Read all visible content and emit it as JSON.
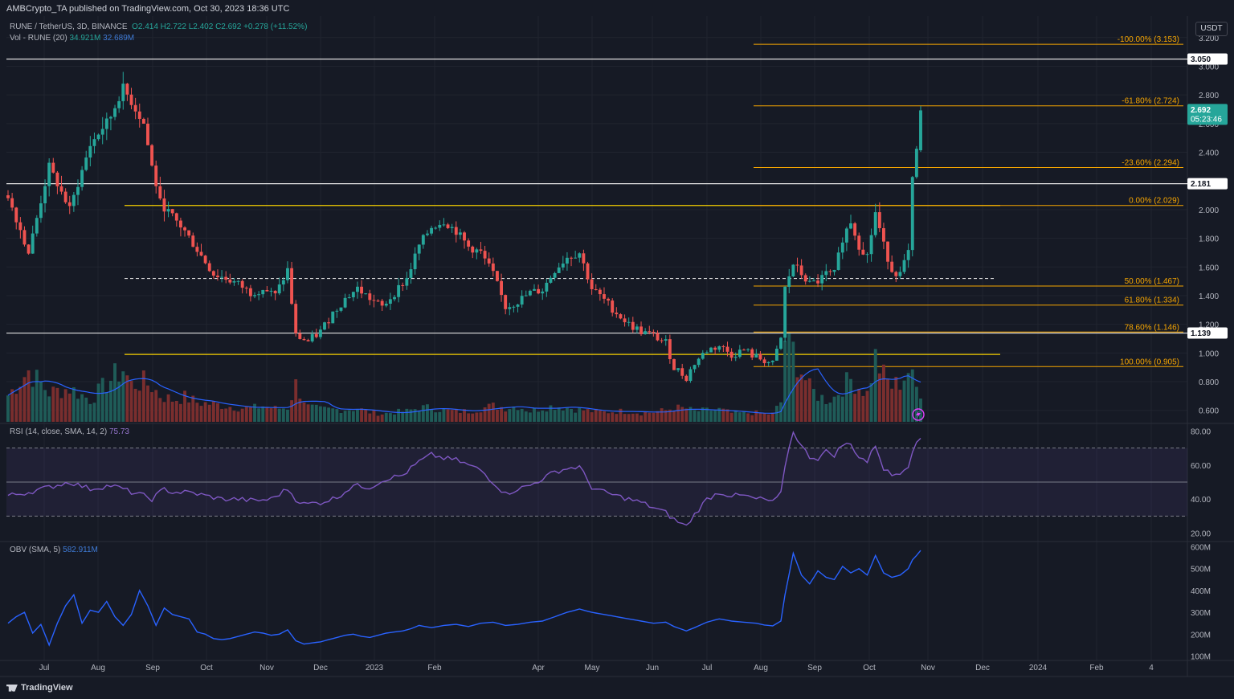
{
  "header": {
    "publisher": "AMBCrypto_TA published on TradingView.com, Oct 30, 2023 18:36 UTC"
  },
  "legend": {
    "symbol": "RUNE / TetherUS, 3D, BINANCE",
    "ohlc": "O2.414 H2.722 L2.402 C2.692 +0.278 (+11.52%)",
    "vol_label": "Vol - RUNE (20)",
    "vol_value": "34.921M",
    "vol_ma": "32.689M",
    "rsi_label": "RSI (14, close, SMA, 14, 2)",
    "rsi_value": "75.73",
    "obv_label": "OBV (SMA, 5)",
    "obv_value": "582.911M"
  },
  "currency": "USDT",
  "footer": {
    "brand": "TradingView"
  },
  "chart_data": {
    "type": "candlestick",
    "colors": {
      "up": "#26a69a",
      "down": "#ef5350",
      "bg": "#161a25",
      "grid": "#232632",
      "fib": "#f7a600",
      "level": "#e0e0e0",
      "vol_ma": "#2962ff",
      "rsi": "#7e57c2",
      "obv": "#2962ff"
    },
    "price_axis": {
      "ticks": [
        "3.200",
        "3.000",
        "2.800",
        "2.600",
        "2.400",
        "2.200",
        "2.000",
        "1.800",
        "1.600",
        "1.400",
        "1.200",
        "1.000",
        "0.800",
        "0.600"
      ],
      "scale": "linear",
      "min": 0.52,
      "max": 3.35
    },
    "time_axis": [
      "Jul",
      "Aug",
      "Sep",
      "Oct",
      "Nov",
      "Dec",
      "2023",
      "Feb",
      "Apr",
      "May",
      "Jun",
      "Jul",
      "Aug",
      "Sep",
      "Oct",
      "Nov",
      "Dec",
      "2024",
      "Feb",
      "4"
    ],
    "price_labels": [
      {
        "value": 3.05,
        "text": "3.050",
        "style": "white"
      },
      {
        "value": 2.181,
        "text": "2.181",
        "style": "white"
      },
      {
        "value": 1.139,
        "text": "1.139",
        "style": "white"
      },
      {
        "value": 2.692,
        "text": "2.692",
        "sub": "05:23:46",
        "style": "green"
      }
    ],
    "fib_levels": [
      {
        "value": 3.153,
        "label": "-100.00% (3.153)"
      },
      {
        "value": 2.724,
        "label": "-61.80% (2.724)"
      },
      {
        "value": 2.294,
        "label": "-23.60% (2.294)"
      },
      {
        "value": 2.029,
        "label": "0.00% (2.029)"
      },
      {
        "value": 1.467,
        "label": "50.00% (1.467)"
      },
      {
        "value": 1.334,
        "label": "61.80% (1.334)"
      },
      {
        "value": 1.146,
        "label": "78.60% (1.146)"
      },
      {
        "value": 0.905,
        "label": "100.00% (0.905)"
      }
    ],
    "horizontal_levels": [
      {
        "value": 3.05,
        "color": "#e0e0e0",
        "style": "solid",
        "from": "start"
      },
      {
        "value": 2.181,
        "color": "#e0e0e0",
        "style": "solid",
        "from": "start"
      },
      {
        "value": 1.139,
        "color": "#e0e0e0",
        "style": "solid",
        "from": "start"
      },
      {
        "value": 2.029,
        "color": "#f7d000",
        "style": "solid",
        "from": "Aug 2022"
      },
      {
        "value": 0.99,
        "color": "#f7d000",
        "style": "solid",
        "from": "Aug 2022"
      },
      {
        "value": 1.52,
        "color": "#e0e0e0",
        "style": "dashed",
        "from": "Aug 2022"
      }
    ],
    "price_anchors": [
      [
        0,
        2.1
      ],
      [
        5,
        1.7
      ],
      [
        10,
        2.3
      ],
      [
        15,
        2.0
      ],
      [
        20,
        2.45
      ],
      [
        25,
        2.65
      ],
      [
        28,
        2.85
      ],
      [
        30,
        2.75
      ],
      [
        33,
        2.6
      ],
      [
        35,
        2.3
      ],
      [
        37,
        2.05
      ],
      [
        40,
        1.95
      ],
      [
        43,
        1.85
      ],
      [
        46,
        1.72
      ],
      [
        50,
        1.55
      ],
      [
        53,
        1.52
      ],
      [
        56,
        1.48
      ],
      [
        59,
        1.42
      ],
      [
        62,
        1.45
      ],
      [
        65,
        1.4
      ],
      [
        68,
        1.58
      ],
      [
        70,
        1.12
      ],
      [
        73,
        1.08
      ],
      [
        76,
        1.15
      ],
      [
        79,
        1.28
      ],
      [
        82,
        1.38
      ],
      [
        85,
        1.45
      ],
      [
        88,
        1.38
      ],
      [
        91,
        1.32
      ],
      [
        94,
        1.42
      ],
      [
        97,
        1.52
      ],
      [
        100,
        1.75
      ],
      [
        103,
        1.88
      ],
      [
        106,
        1.92
      ],
      [
        109,
        1.85
      ],
      [
        112,
        1.74
      ],
      [
        115,
        1.7
      ],
      [
        118,
        1.55
      ],
      [
        121,
        1.32
      ],
      [
        124,
        1.36
      ],
      [
        127,
        1.42
      ],
      [
        130,
        1.44
      ],
      [
        133,
        1.58
      ],
      [
        136,
        1.67
      ],
      [
        139,
        1.7
      ],
      [
        142,
        1.45
      ],
      [
        145,
        1.37
      ],
      [
        148,
        1.28
      ],
      [
        151,
        1.2
      ],
      [
        154,
        1.15
      ],
      [
        157,
        1.12
      ],
      [
        160,
        1.07
      ],
      [
        162,
        0.9
      ],
      [
        165,
        0.83
      ],
      [
        167,
        0.93
      ],
      [
        170,
        1.02
      ],
      [
        173,
        1.05
      ],
      [
        176,
        0.99
      ],
      [
        179,
        1.02
      ],
      [
        182,
        0.97
      ],
      [
        184,
        0.95
      ],
      [
        186,
        0.92
      ],
      [
        188,
        1.1
      ],
      [
        189,
        1.45
      ],
      [
        191,
        1.62
      ],
      [
        193,
        1.55
      ],
      [
        195,
        1.48
      ],
      [
        197,
        1.5
      ],
      [
        199,
        1.55
      ],
      [
        201,
        1.55
      ],
      [
        203,
        1.8
      ],
      [
        205,
        1.92
      ],
      [
        207,
        1.75
      ],
      [
        209,
        1.68
      ],
      [
        211,
        1.98
      ],
      [
        213,
        1.75
      ],
      [
        215,
        1.58
      ],
      [
        217,
        1.55
      ],
      [
        219,
        1.7
      ],
      [
        220,
        2.2
      ],
      [
        221,
        2.41
      ],
      [
        222,
        2.692
      ]
    ],
    "volume_anchors": [
      [
        0,
        30
      ],
      [
        5,
        58
      ],
      [
        10,
        33
      ],
      [
        15,
        38
      ],
      [
        20,
        25
      ],
      [
        25,
        48
      ],
      [
        28,
        60
      ],
      [
        30,
        42
      ],
      [
        33,
        45
      ],
      [
        35,
        40
      ],
      [
        37,
        30
      ],
      [
        40,
        25
      ],
      [
        43,
        28
      ],
      [
        46,
        22
      ],
      [
        50,
        20
      ],
      [
        53,
        18
      ],
      [
        56,
        16
      ],
      [
        59,
        15
      ],
      [
        62,
        18
      ],
      [
        65,
        15
      ],
      [
        68,
        16
      ],
      [
        70,
        42
      ],
      [
        73,
        17
      ],
      [
        76,
        14
      ],
      [
        79,
        14
      ],
      [
        82,
        14
      ],
      [
        85,
        15
      ],
      [
        88,
        11
      ],
      [
        91,
        9
      ],
      [
        94,
        11
      ],
      [
        97,
        12
      ],
      [
        100,
        16
      ],
      [
        103,
        16
      ],
      [
        106,
        13
      ],
      [
        109,
        12
      ],
      [
        112,
        12
      ],
      [
        115,
        15
      ],
      [
        118,
        18
      ],
      [
        121,
        16
      ],
      [
        124,
        18
      ],
      [
        127,
        12
      ],
      [
        130,
        16
      ],
      [
        133,
        18
      ],
      [
        136,
        16
      ],
      [
        139,
        14
      ],
      [
        142,
        12
      ],
      [
        145,
        11
      ],
      [
        148,
        12
      ],
      [
        151,
        12
      ],
      [
        154,
        10
      ],
      [
        157,
        11
      ],
      [
        160,
        13
      ],
      [
        162,
        16
      ],
      [
        165,
        15
      ],
      [
        167,
        12
      ],
      [
        170,
        13
      ],
      [
        173,
        14
      ],
      [
        176,
        10
      ],
      [
        179,
        10
      ],
      [
        182,
        10
      ],
      [
        184,
        9
      ],
      [
        186,
        9
      ],
      [
        188,
        22
      ],
      [
        189,
        95
      ],
      [
        191,
        80
      ],
      [
        193,
        58
      ],
      [
        195,
        38
      ],
      [
        197,
        30
      ],
      [
        199,
        25
      ],
      [
        201,
        28
      ],
      [
        203,
        40
      ],
      [
        205,
        48
      ],
      [
        207,
        40
      ],
      [
        209,
        32
      ],
      [
        211,
        72
      ],
      [
        213,
        52
      ],
      [
        215,
        40
      ],
      [
        217,
        45
      ],
      [
        219,
        58
      ],
      [
        220,
        48
      ],
      [
        221,
        38
      ],
      [
        222,
        35
      ]
    ],
    "volume_axis_max": 100,
    "rsi_axis": {
      "ticks": [
        "80.00",
        "60.00",
        "40.00",
        "20.00"
      ],
      "min": 16,
      "max": 84,
      "bands": [
        70,
        50,
        30
      ]
    },
    "rsi_anchors": [
      [
        0,
        42
      ],
      [
        5,
        44
      ],
      [
        10,
        47
      ],
      [
        15,
        50
      ],
      [
        20,
        46
      ],
      [
        25,
        48
      ],
      [
        28,
        46
      ],
      [
        30,
        44
      ],
      [
        33,
        42
      ],
      [
        35,
        40
      ],
      [
        38,
        46
      ],
      [
        40,
        44
      ],
      [
        44,
        44
      ],
      [
        48,
        42
      ],
      [
        52,
        40
      ],
      [
        56,
        40
      ],
      [
        60,
        39
      ],
      [
        64,
        40
      ],
      [
        68,
        46
      ],
      [
        70,
        40
      ],
      [
        72,
        37
      ],
      [
        76,
        38
      ],
      [
        80,
        41
      ],
      [
        84,
        48
      ],
      [
        88,
        47
      ],
      [
        92,
        52
      ],
      [
        96,
        54
      ],
      [
        100,
        62
      ],
      [
        103,
        66
      ],
      [
        106,
        64
      ],
      [
        109,
        63
      ],
      [
        112,
        60
      ],
      [
        115,
        57
      ],
      [
        118,
        50
      ],
      [
        121,
        43
      ],
      [
        124,
        46
      ],
      [
        127,
        48
      ],
      [
        130,
        52
      ],
      [
        133,
        56
      ],
      [
        136,
        58
      ],
      [
        139,
        59
      ],
      [
        142,
        47
      ],
      [
        145,
        44
      ],
      [
        148,
        42
      ],
      [
        151,
        40
      ],
      [
        154,
        38
      ],
      [
        157,
        35
      ],
      [
        160,
        32
      ],
      [
        162,
        28
      ],
      [
        165,
        24
      ],
      [
        167,
        31
      ],
      [
        170,
        40
      ],
      [
        173,
        44
      ],
      [
        176,
        42
      ],
      [
        179,
        42
      ],
      [
        182,
        40
      ],
      [
        184,
        40
      ],
      [
        186,
        38
      ],
      [
        188,
        43
      ],
      [
        189,
        60
      ],
      [
        191,
        80
      ],
      [
        193,
        71
      ],
      [
        195,
        65
      ],
      [
        197,
        64
      ],
      [
        199,
        68
      ],
      [
        201,
        66
      ],
      [
        203,
        72
      ],
      [
        205,
        72
      ],
      [
        207,
        65
      ],
      [
        209,
        62
      ],
      [
        211,
        72
      ],
      [
        213,
        58
      ],
      [
        215,
        54
      ],
      [
        217,
        56
      ],
      [
        219,
        60
      ],
      [
        220,
        69
      ],
      [
        221,
        72
      ],
      [
        222,
        75.73
      ]
    ],
    "obv_axis": {
      "ticks": [
        "600M",
        "500M",
        "400M",
        "300M",
        "200M",
        "100M"
      ],
      "min": 80,
      "max": 620
    },
    "obv_anchors": [
      [
        0,
        250
      ],
      [
        2,
        280
      ],
      [
        4,
        300
      ],
      [
        6,
        205
      ],
      [
        8,
        245
      ],
      [
        10,
        150
      ],
      [
        12,
        250
      ],
      [
        14,
        330
      ],
      [
        16,
        380
      ],
      [
        18,
        250
      ],
      [
        20,
        310
      ],
      [
        22,
        300
      ],
      [
        24,
        350
      ],
      [
        26,
        280
      ],
      [
        28,
        240
      ],
      [
        30,
        290
      ],
      [
        32,
        400
      ],
      [
        34,
        330
      ],
      [
        36,
        240
      ],
      [
        38,
        320
      ],
      [
        40,
        290
      ],
      [
        42,
        280
      ],
      [
        44,
        270
      ],
      [
        46,
        210
      ],
      [
        48,
        200
      ],
      [
        50,
        180
      ],
      [
        52,
        175
      ],
      [
        54,
        180
      ],
      [
        56,
        190
      ],
      [
        58,
        200
      ],
      [
        60,
        210
      ],
      [
        62,
        205
      ],
      [
        64,
        195
      ],
      [
        66,
        200
      ],
      [
        68,
        220
      ],
      [
        70,
        170
      ],
      [
        72,
        155
      ],
      [
        74,
        160
      ],
      [
        76,
        165
      ],
      [
        78,
        175
      ],
      [
        80,
        185
      ],
      [
        82,
        195
      ],
      [
        84,
        200
      ],
      [
        86,
        190
      ],
      [
        88,
        185
      ],
      [
        90,
        195
      ],
      [
        92,
        205
      ],
      [
        94,
        210
      ],
      [
        96,
        215
      ],
      [
        98,
        225
      ],
      [
        100,
        240
      ],
      [
        103,
        230
      ],
      [
        106,
        240
      ],
      [
        109,
        245
      ],
      [
        112,
        235
      ],
      [
        115,
        250
      ],
      [
        118,
        255
      ],
      [
        121,
        240
      ],
      [
        124,
        245
      ],
      [
        127,
        255
      ],
      [
        130,
        260
      ],
      [
        133,
        280
      ],
      [
        136,
        300
      ],
      [
        139,
        315
      ],
      [
        142,
        300
      ],
      [
        145,
        290
      ],
      [
        148,
        280
      ],
      [
        151,
        270
      ],
      [
        154,
        260
      ],
      [
        157,
        250
      ],
      [
        160,
        255
      ],
      [
        162,
        235
      ],
      [
        165,
        215
      ],
      [
        167,
        230
      ],
      [
        170,
        255
      ],
      [
        173,
        270
      ],
      [
        176,
        260
      ],
      [
        179,
        255
      ],
      [
        182,
        250
      ],
      [
        184,
        242
      ],
      [
        186,
        238
      ],
      [
        188,
        260
      ],
      [
        189,
        380
      ],
      [
        191,
        570
      ],
      [
        193,
        470
      ],
      [
        195,
        430
      ],
      [
        197,
        490
      ],
      [
        199,
        460
      ],
      [
        201,
        450
      ],
      [
        203,
        510
      ],
      [
        205,
        480
      ],
      [
        207,
        500
      ],
      [
        209,
        470
      ],
      [
        211,
        560
      ],
      [
        213,
        480
      ],
      [
        215,
        460
      ],
      [
        217,
        470
      ],
      [
        219,
        500
      ],
      [
        220,
        540
      ],
      [
        221,
        560
      ],
      [
        222,
        582.911
      ]
    ],
    "obv_highlights": [
      "(0)"
    ]
  }
}
